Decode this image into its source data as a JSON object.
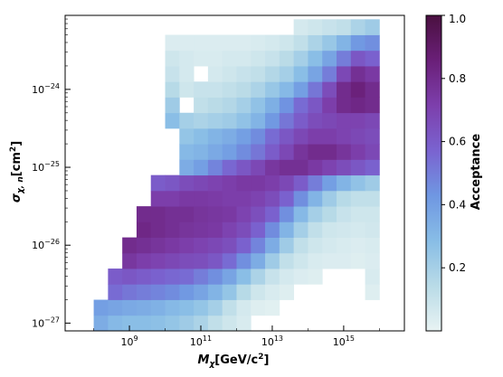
{
  "chart_data": {
    "type": "heatmap",
    "title": "",
    "xlabel": "M_χ[GeV/c²]",
    "ylabel": "σ_χ,n[cm²]",
    "x_scale": "log",
    "y_scale": "log",
    "xlim_log10": [
      7.2,
      16.7
    ],
    "ylim_log10": [
      -27.1,
      -23.05
    ],
    "x_ticks": [
      {
        "exp": 9,
        "base": "10",
        "sup": "9"
      },
      {
        "exp": 11,
        "base": "10",
        "sup": "11"
      },
      {
        "exp": 13,
        "base": "10",
        "sup": "13"
      },
      {
        "exp": 15,
        "base": "10",
        "sup": "15"
      }
    ],
    "y_ticks": [
      {
        "exp": -24,
        "base": "10",
        "sup": "−24"
      },
      {
        "exp": -25,
        "base": "10",
        "sup": "−25"
      },
      {
        "exp": -26,
        "base": "10",
        "sup": "−26"
      },
      {
        "exp": -27,
        "base": "10",
        "sup": "−27"
      }
    ],
    "colorbar": {
      "label": "Acceptance",
      "range": [
        0.0,
        1.0
      ],
      "ticks": [
        {
          "value": 0.2,
          "label": "0.2"
        },
        {
          "value": 0.4,
          "label": "0.4"
        },
        {
          "value": 0.6,
          "label": "0.6"
        },
        {
          "value": 0.8,
          "label": "0.8"
        },
        {
          "value": 1.0,
          "label": "1.0"
        }
      ],
      "colors": [
        "#e8f3f3",
        "#b9dbe7",
        "#88bde6",
        "#6f97e2",
        "#7a63d0",
        "#7d3fac",
        "#6a1f78",
        "#4a1040"
      ]
    },
    "grid": false,
    "log10_mass_start": 8.0,
    "log10_mass_step": 0.4,
    "log10_sigma_start": -27.1,
    "log10_sigma_step": 0.2,
    "cells": [
      [
        0.35,
        0.3,
        0.28,
        0.28,
        0.27,
        0.25,
        0.22,
        0.18,
        0.12,
        0.08,
        0.05,
        null,
        null,
        null,
        null,
        null,
        null,
        null,
        null,
        null,
        null
      ],
      [
        0.4,
        0.38,
        0.36,
        0.35,
        0.33,
        0.3,
        0.28,
        0.25,
        0.2,
        0.12,
        0.06,
        0.03,
        0.02,
        null,
        null,
        null,
        null,
        null,
        null,
        null,
        null
      ],
      [
        null,
        0.55,
        0.52,
        0.5,
        0.48,
        0.46,
        0.42,
        0.38,
        0.32,
        0.25,
        0.15,
        0.08,
        0.05,
        0.03,
        null,
        null,
        null,
        null,
        null,
        0.03,
        null
      ],
      [
        null,
        0.6,
        0.62,
        0.6,
        0.58,
        0.56,
        0.55,
        0.5,
        0.45,
        0.38,
        0.28,
        0.18,
        0.1,
        0.06,
        0.04,
        0.03,
        null,
        null,
        null,
        0.05,
        null
      ],
      [
        null,
        null,
        0.75,
        0.72,
        0.7,
        0.68,
        0.66,
        0.65,
        0.62,
        0.55,
        0.45,
        0.35,
        0.22,
        0.12,
        0.08,
        0.05,
        0.04,
        0.04,
        0.03,
        0.04,
        null
      ],
      [
        null,
        null,
        0.8,
        0.78,
        0.76,
        0.74,
        0.72,
        0.7,
        0.68,
        0.65,
        0.58,
        0.48,
        0.35,
        0.22,
        0.12,
        0.08,
        0.06,
        0.05,
        0.04,
        0.05,
        null
      ],
      [
        null,
        null,
        null,
        0.82,
        0.8,
        0.78,
        0.76,
        0.75,
        0.74,
        0.7,
        0.66,
        0.58,
        0.46,
        0.32,
        0.2,
        0.12,
        0.08,
        0.07,
        0.06,
        0.07,
        null
      ],
      [
        null,
        null,
        null,
        0.8,
        0.8,
        0.78,
        0.78,
        0.76,
        0.75,
        0.74,
        0.7,
        0.65,
        0.58,
        0.45,
        0.3,
        0.2,
        0.15,
        0.1,
        0.08,
        0.08,
        null
      ],
      [
        null,
        null,
        null,
        null,
        0.72,
        0.72,
        0.74,
        0.74,
        0.73,
        0.72,
        0.72,
        0.7,
        0.66,
        0.58,
        0.45,
        0.32,
        0.22,
        0.15,
        0.12,
        0.12,
        null
      ],
      [
        null,
        null,
        null,
        null,
        0.6,
        0.62,
        0.66,
        0.68,
        0.7,
        0.72,
        0.74,
        0.74,
        0.72,
        0.68,
        0.6,
        0.5,
        0.4,
        0.32,
        0.26,
        0.22,
        null
      ],
      [
        null,
        null,
        null,
        null,
        null,
        null,
        0.35,
        0.4,
        0.48,
        0.56,
        0.62,
        0.68,
        0.75,
        0.78,
        0.78,
        0.74,
        0.7,
        0.66,
        0.62,
        0.58,
        null
      ],
      [
        null,
        null,
        null,
        null,
        null,
        null,
        0.3,
        0.32,
        0.36,
        0.4,
        0.46,
        0.52,
        0.6,
        0.68,
        0.76,
        0.8,
        0.8,
        0.76,
        0.72,
        0.68,
        null
      ],
      [
        null,
        null,
        null,
        null,
        null,
        null,
        0.25,
        0.28,
        0.32,
        0.35,
        0.4,
        0.46,
        0.55,
        0.62,
        0.68,
        0.72,
        0.72,
        0.7,
        0.68,
        0.66,
        null
      ],
      [
        null,
        null,
        null,
        null,
        null,
        0.28,
        0.2,
        0.18,
        0.2,
        0.22,
        0.26,
        0.32,
        0.42,
        0.52,
        0.6,
        0.66,
        0.68,
        0.7,
        0.7,
        0.68,
        null
      ],
      [
        null,
        null,
        null,
        null,
        null,
        0.22,
        null,
        0.12,
        0.14,
        0.16,
        0.2,
        0.26,
        0.34,
        0.44,
        0.55,
        0.62,
        0.72,
        0.8,
        0.82,
        0.8,
        null
      ],
      [
        null,
        null,
        null,
        null,
        null,
        0.15,
        0.08,
        0.1,
        0.1,
        0.12,
        0.14,
        0.18,
        0.24,
        0.3,
        0.4,
        0.52,
        0.66,
        0.8,
        0.85,
        0.8,
        null
      ],
      [
        null,
        null,
        null,
        null,
        null,
        0.1,
        0.06,
        null,
        0.06,
        0.08,
        0.1,
        0.12,
        0.16,
        0.2,
        0.28,
        0.38,
        0.5,
        0.68,
        0.78,
        0.74,
        null
      ],
      [
        null,
        null,
        null,
        null,
        null,
        0.08,
        0.06,
        0.05,
        0.05,
        0.06,
        0.06,
        0.08,
        0.1,
        0.14,
        0.2,
        0.28,
        0.38,
        0.5,
        0.62,
        0.58,
        null
      ],
      [
        null,
        null,
        null,
        null,
        null,
        0.04,
        0.04,
        0.04,
        0.04,
        0.04,
        0.04,
        0.05,
        0.06,
        0.08,
        0.12,
        0.18,
        0.24,
        0.32,
        0.42,
        0.45,
        null
      ],
      [
        null,
        null,
        null,
        null,
        null,
        null,
        null,
        null,
        null,
        null,
        null,
        null,
        null,
        null,
        0.06,
        0.08,
        0.1,
        0.12,
        0.18,
        0.22,
        null
      ]
    ]
  }
}
